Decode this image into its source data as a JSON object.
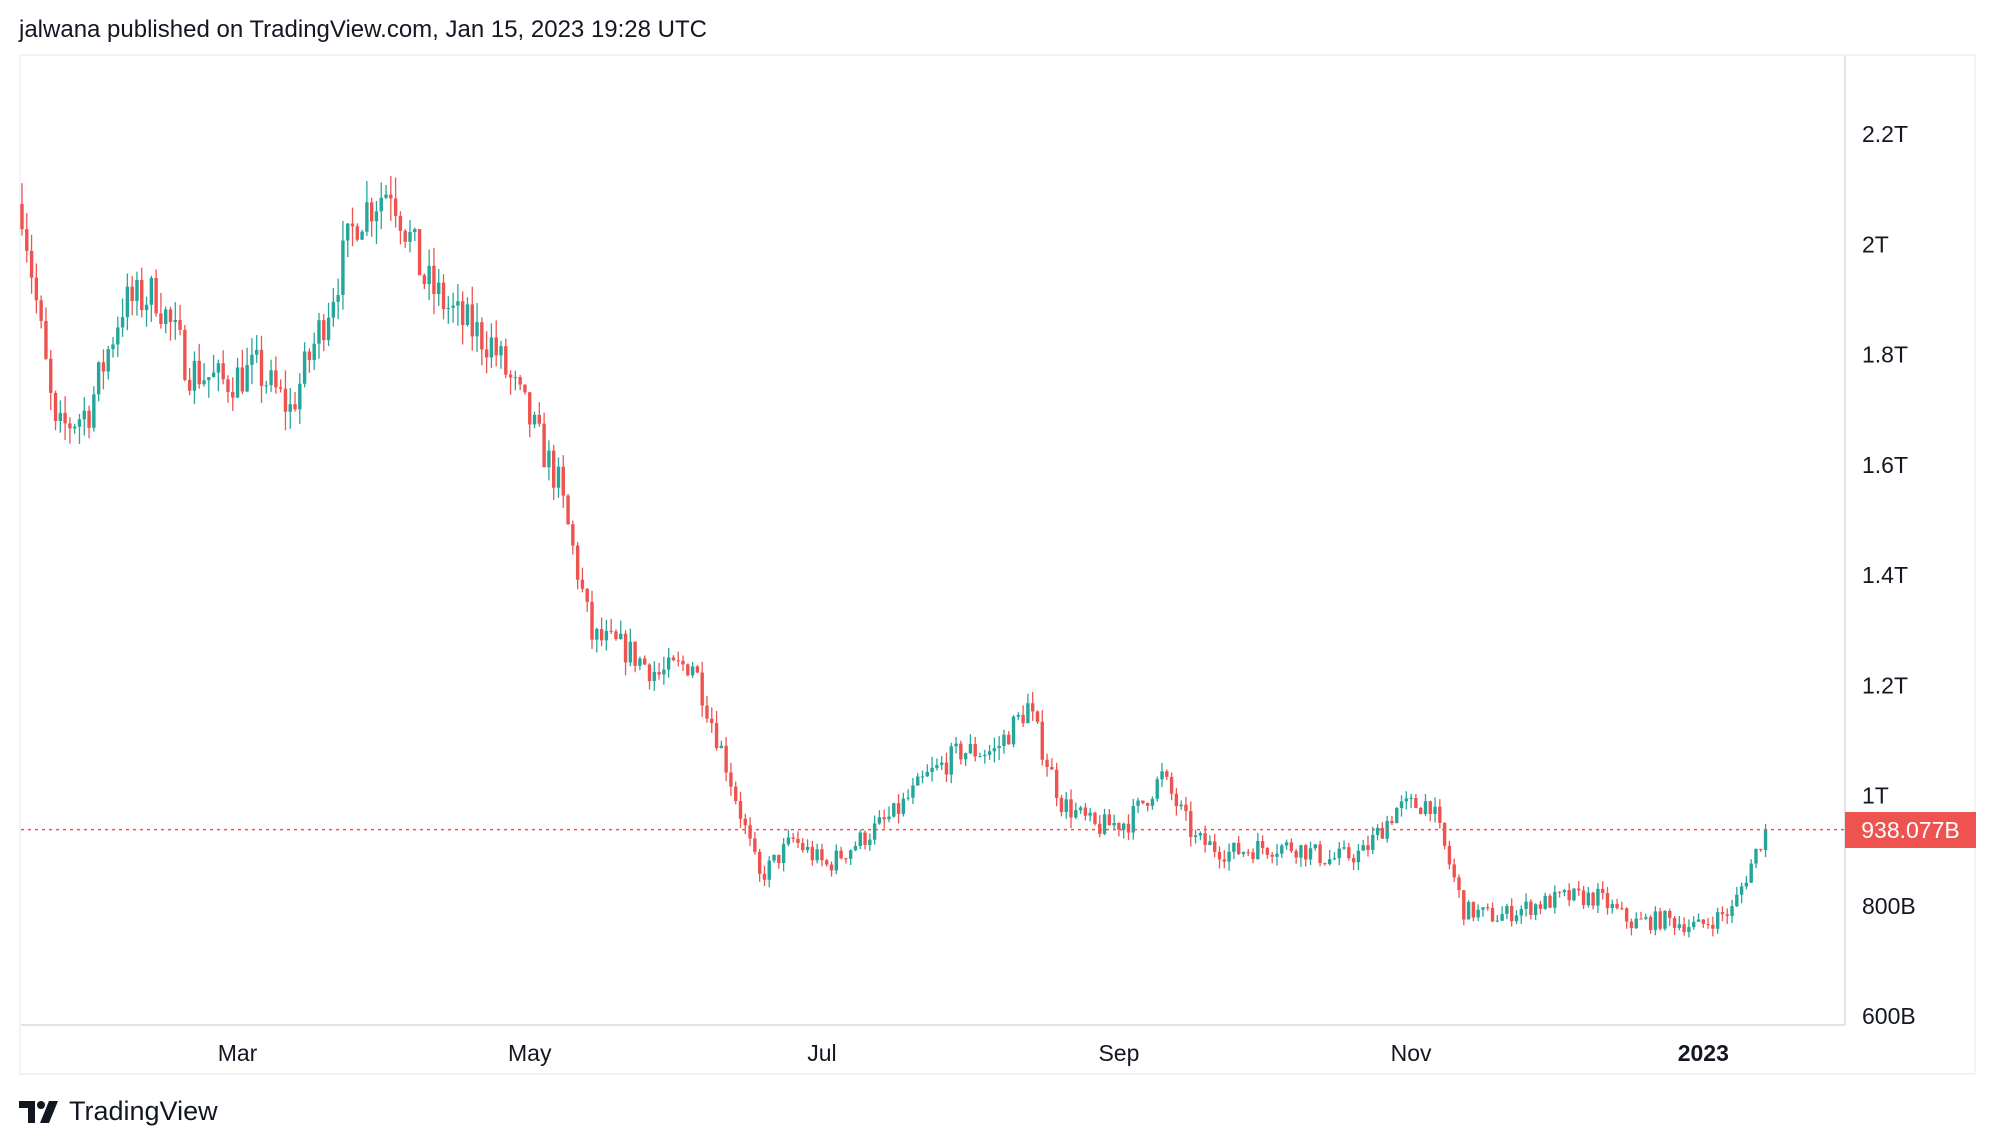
{
  "header": {
    "text": "jalwana published on TradingView.com, Jan 15, 2023 19:28 UTC"
  },
  "footer": {
    "brand": "TradingView"
  },
  "colors": {
    "up": "#26a69a",
    "down": "#ef5350",
    "grid_border": "#e0e3eb"
  },
  "chart_data": {
    "type": "candlestick",
    "title": "",
    "unit": "USD (billions)",
    "start_date": "2022-01-15",
    "end_date": "2023-01-15",
    "interval": "1D",
    "weekly_close_keypoints": [
      2073,
      1657,
      1700,
      1890,
      1910,
      1773,
      1750,
      1773,
      1700,
      1865,
      2050,
      2108,
      1935,
      1865,
      1820,
      1700,
      1565,
      1288,
      1265,
      1219,
      1242,
      1057,
      850,
      919,
      872,
      919,
      965,
      1034,
      1080,
      1080,
      1161,
      988,
      942,
      953,
      1034,
      919,
      896,
      907,
      907,
      884,
      896,
      976,
      988,
      792,
      780,
      799,
      815,
      815,
      769,
      775,
      762,
      792,
      938.077
    ],
    "last_price": 938.077,
    "last_price_label": "938.077B",
    "ylim": [
      600,
      2300
    ],
    "y_ticks": [
      {
        "value": 2200,
        "label": "2.2T"
      },
      {
        "value": 2000,
        "label": "2T"
      },
      {
        "value": 1800,
        "label": "1.8T"
      },
      {
        "value": 1600,
        "label": "1.6T"
      },
      {
        "value": 1400,
        "label": "1.4T"
      },
      {
        "value": 1200,
        "label": "1.2T"
      },
      {
        "value": 1000,
        "label": "1T"
      },
      {
        "value": 800,
        "label": "800B"
      },
      {
        "value": 600,
        "label": "600B"
      }
    ],
    "x_ticks": [
      {
        "day": 45,
        "label": "Mar",
        "bold": false
      },
      {
        "day": 106,
        "label": "May",
        "bold": false
      },
      {
        "day": 167,
        "label": "Jul",
        "bold": false
      },
      {
        "day": 229,
        "label": "Sep",
        "bold": false
      },
      {
        "day": 290,
        "label": "Nov",
        "bold": false
      },
      {
        "day": 351,
        "label": "2023",
        "bold": true
      }
    ]
  }
}
